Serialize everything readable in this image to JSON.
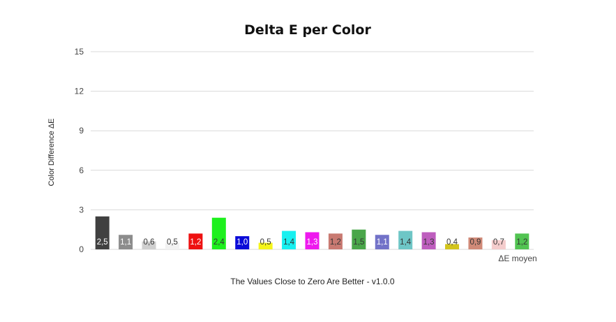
{
  "chart_data": {
    "type": "bar",
    "title": "Delta E per Color",
    "xlabel": "The Values Close  to Zero Are Better - v1.0.0",
    "ylabel": "Color Difference  ΔE",
    "series_label": "ΔE moyen",
    "ylim": [
      0,
      15
    ],
    "yticks": [
      0,
      3,
      6,
      9,
      12,
      15
    ],
    "grid": true,
    "bars": [
      {
        "value": 2.5,
        "label": "2,5",
        "color": "#404040",
        "text_color": "#ffffff"
      },
      {
        "value": 1.1,
        "label": "1,1",
        "color": "#8c8c8c",
        "text_color": "#ffffff"
      },
      {
        "value": 0.6,
        "label": "0,6",
        "color": "#cfcfcf",
        "text_color": "#333333"
      },
      {
        "value": 0.5,
        "label": "0,5",
        "color": "#f2f2f2",
        "text_color": "#333333"
      },
      {
        "value": 1.2,
        "label": "1,2",
        "color": "#ee1111",
        "text_color": "#ffffff"
      },
      {
        "value": 2.4,
        "label": "2,4",
        "color": "#1ef01e",
        "text_color": "#333333"
      },
      {
        "value": 1.0,
        "label": "1,0",
        "color": "#0a0ad8",
        "text_color": "#ffffff"
      },
      {
        "value": 0.5,
        "label": "0,5",
        "color": "#f5f51a",
        "text_color": "#333333"
      },
      {
        "value": 1.4,
        "label": "1,4",
        "color": "#18f0f0",
        "text_color": "#333333"
      },
      {
        "value": 1.3,
        "label": "1,3",
        "color": "#ee18ee",
        "text_color": "#ffffff"
      },
      {
        "value": 1.2,
        "label": "1,2",
        "color": "#c97a72",
        "text_color": "#333333"
      },
      {
        "value": 1.5,
        "label": "1,5",
        "color": "#4aa64a",
        "text_color": "#333333"
      },
      {
        "value": 1.1,
        "label": "1,1",
        "color": "#7272c8",
        "text_color": "#ffffff"
      },
      {
        "value": 1.4,
        "label": "1,4",
        "color": "#6ec6c6",
        "text_color": "#333333"
      },
      {
        "value": 1.3,
        "label": "1,3",
        "color": "#be5ebe",
        "text_color": "#333333"
      },
      {
        "value": 0.4,
        "label": "0,4",
        "color": "#d2c41c",
        "text_color": "#333333"
      },
      {
        "value": 0.9,
        "label": "0,9",
        "color": "#d08a78",
        "text_color": "#333333"
      },
      {
        "value": 0.7,
        "label": "0,7",
        "color": "#f4cccc",
        "text_color": "#333333"
      },
      {
        "value": 1.2,
        "label": "1,2",
        "color": "#52c452",
        "text_color": "#333333"
      }
    ]
  }
}
